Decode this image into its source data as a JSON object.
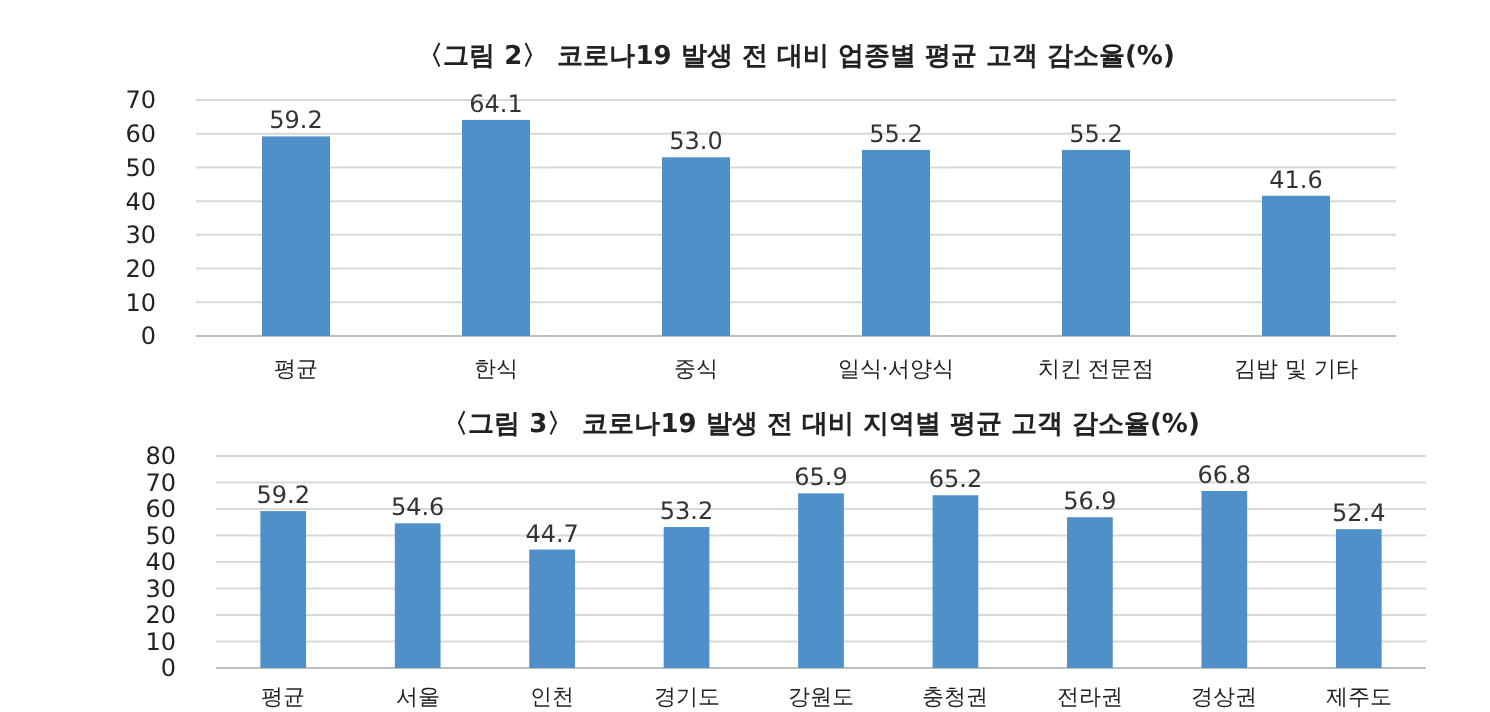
{
  "chart_data": [
    {
      "type": "bar",
      "title": "〈그림 2〉 코로나19 발생 전 대비 업종별 평균 고객 감소율(%)",
      "categories": [
        "평균",
        "한식",
        "중식",
        "일식·서양식",
        "치킨 전문점",
        "김밥 및 기타"
      ],
      "values": [
        59.2,
        64.1,
        53.0,
        55.2,
        55.2,
        41.6
      ],
      "value_labels": [
        "59.2",
        "64.1",
        "53.0",
        "55.2",
        "55.2",
        "41.6"
      ],
      "color": "#4f90c8",
      "ylim": [
        0,
        70
      ],
      "yticks": [
        0,
        10,
        20,
        30,
        40,
        50,
        60,
        70
      ],
      "grid": "y"
    },
    {
      "type": "bar",
      "title": "〈그림 3〉 코로나19 발생 전 대비 지역별 평균 고객 감소율(%)",
      "categories": [
        "평균",
        "서울",
        "인천",
        "경기도",
        "강원도",
        "충청권",
        "전라권",
        "경상권",
        "제주도"
      ],
      "values": [
        59.2,
        54.6,
        44.7,
        53.2,
        65.9,
        65.2,
        56.9,
        66.8,
        52.4
      ],
      "value_labels": [
        "59.2",
        "54.6",
        "44.7",
        "53.2",
        "65.9",
        "65.2",
        "56.9",
        "66.8",
        "52.4"
      ],
      "color": "#4f90c8",
      "ylim": [
        0,
        80
      ],
      "yticks": [
        0,
        10,
        20,
        30,
        40,
        50,
        60,
        70,
        80
      ],
      "grid": "y"
    }
  ]
}
